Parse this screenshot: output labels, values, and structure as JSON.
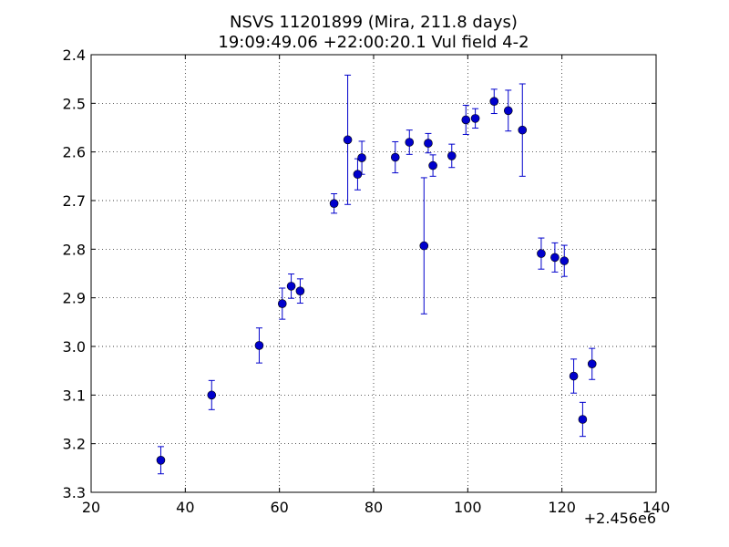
{
  "chart_data": {
    "type": "scatter",
    "title": "NSVS 11201899 (Mira, 211.8 days)",
    "subtitle": "19:09:49.06 +22:00:20.1 Vul field 4-2",
    "xlabel": "",
    "ylabel": "",
    "x_offset_label": "+2.456e6",
    "x_offset": 2456000,
    "xlim": [
      20,
      140
    ],
    "ylim": [
      3.3,
      2.4
    ],
    "y_inverted": true,
    "grid": true,
    "x_ticks": [
      "20",
      "40",
      "60",
      "80",
      "100",
      "120",
      "140"
    ],
    "y_ticks": [
      "2.4",
      "2.5",
      "2.6",
      "2.7",
      "2.8",
      "2.9",
      "3.0",
      "3.1",
      "3.2",
      "3.3"
    ],
    "color": "#0000cc",
    "points": [
      {
        "x": 34.8,
        "y": 3.234,
        "err": 0.028
      },
      {
        "x": 45.6,
        "y": 3.1,
        "err": 0.03
      },
      {
        "x": 55.7,
        "y": 2.998,
        "err": 0.036
      },
      {
        "x": 60.6,
        "y": 2.912,
        "err": 0.032
      },
      {
        "x": 62.5,
        "y": 2.876,
        "err": 0.025
      },
      {
        "x": 64.4,
        "y": 2.886,
        "err": 0.025
      },
      {
        "x": 71.6,
        "y": 2.706,
        "err": 0.02
      },
      {
        "x": 74.5,
        "y": 2.575,
        "err": 0.133
      },
      {
        "x": 76.6,
        "y": 2.646,
        "err": 0.032
      },
      {
        "x": 77.5,
        "y": 2.612,
        "err": 0.034
      },
      {
        "x": 84.6,
        "y": 2.611,
        "err": 0.032
      },
      {
        "x": 87.6,
        "y": 2.58,
        "err": 0.025
      },
      {
        "x": 90.7,
        "y": 2.793,
        "err": 0.14
      },
      {
        "x": 91.6,
        "y": 2.582,
        "err": 0.02
      },
      {
        "x": 92.6,
        "y": 2.628,
        "err": 0.022
      },
      {
        "x": 96.6,
        "y": 2.608,
        "err": 0.024
      },
      {
        "x": 99.6,
        "y": 2.534,
        "err": 0.03
      },
      {
        "x": 101.6,
        "y": 2.531,
        "err": 0.02
      },
      {
        "x": 105.6,
        "y": 2.496,
        "err": 0.025
      },
      {
        "x": 108.6,
        "y": 2.515,
        "err": 0.042
      },
      {
        "x": 111.6,
        "y": 2.555,
        "err": 0.095
      },
      {
        "x": 115.6,
        "y": 2.809,
        "err": 0.032
      },
      {
        "x": 118.5,
        "y": 2.817,
        "err": 0.03
      },
      {
        "x": 120.5,
        "y": 2.824,
        "err": 0.032
      },
      {
        "x": 122.5,
        "y": 3.061,
        "err": 0.035
      },
      {
        "x": 124.4,
        "y": 3.15,
        "err": 0.035
      },
      {
        "x": 126.4,
        "y": 3.036,
        "err": 0.032
      }
    ]
  }
}
